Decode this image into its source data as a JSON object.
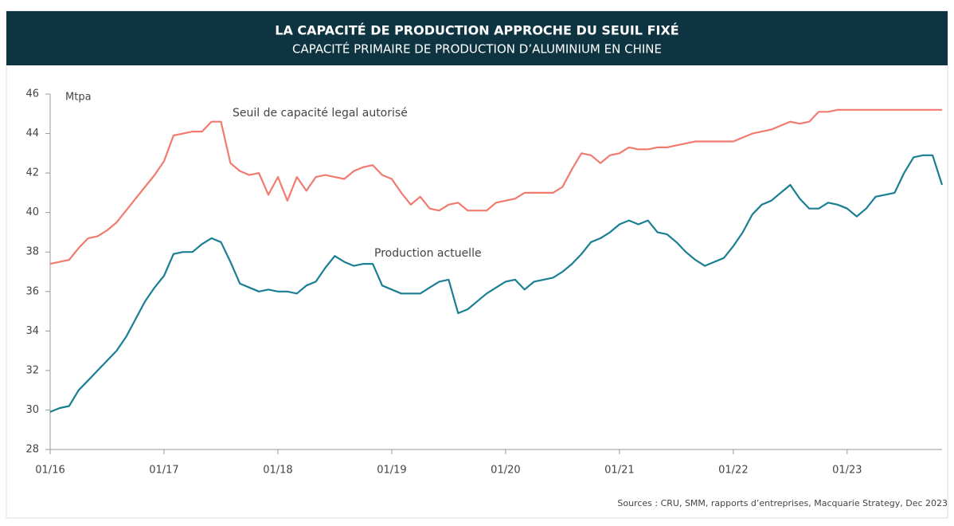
{
  "chart_data": {
    "type": "line",
    "title": "LA CAPACITÉ DE PRODUCTION APPROCHE DU SEUIL FIXÉ",
    "subtitle": "CAPACITÉ PRIMAIRE DE PRODUCTION D’ALUMINIUM EN CHINE",
    "y_unit": "Mtpa",
    "source": "Sources : CRU, SMM, rapports d’entreprises, Macquarie Strategy, Dec 2023",
    "categories": [
      "01/16",
      null,
      null,
      null,
      null,
      null,
      null,
      null,
      null,
      null,
      null,
      null,
      "01/17",
      null,
      null,
      null,
      null,
      null,
      null,
      null,
      null,
      null,
      null,
      null,
      "01/18",
      null,
      null,
      null,
      null,
      null,
      null,
      null,
      null,
      null,
      null,
      null,
      "01/19",
      null,
      null,
      null,
      null,
      null,
      null,
      null,
      null,
      null,
      null,
      null,
      "01/20",
      null,
      null,
      null,
      null,
      null,
      null,
      null,
      null,
      null,
      null,
      null,
      "01/21",
      null,
      null,
      null,
      null,
      null,
      null,
      null,
      null,
      null,
      null,
      null,
      "01/22",
      null,
      null,
      null,
      null,
      null,
      null,
      null,
      null,
      null,
      null,
      null,
      "01/23",
      null,
      null,
      null,
      null,
      null,
      null,
      null,
      null,
      null,
      null
    ],
    "series": [
      {
        "name": "Seuil de capacité legal autorisé",
        "color": "#f07b6e",
        "values": [
          37.4,
          37.5,
          37.6,
          38.2,
          38.7,
          38.8,
          39.1,
          39.5,
          40.1,
          40.7,
          41.3,
          41.9,
          42.6,
          43.9,
          44.0,
          44.1,
          44.1,
          44.6,
          44.6,
          42.5,
          42.1,
          41.9,
          42.0,
          40.9,
          41.8,
          40.6,
          41.8,
          41.1,
          41.8,
          41.9,
          41.8,
          41.7,
          42.1,
          42.3,
          42.4,
          41.9,
          41.7,
          41.0,
          40.4,
          40.8,
          40.2,
          40.1,
          40.4,
          40.5,
          40.1,
          40.1,
          40.1,
          40.5,
          40.6,
          40.7,
          41.0,
          41.0,
          41.0,
          41.0,
          41.3,
          42.2,
          43.0,
          42.9,
          42.5,
          42.9,
          43.0,
          43.3,
          43.2,
          43.2,
          43.3,
          43.3,
          43.4,
          43.5,
          43.6,
          43.6,
          43.6,
          43.6,
          43.6,
          43.8,
          44.0,
          44.1,
          44.2,
          44.4,
          44.6,
          44.5,
          44.6,
          45.1,
          45.1,
          45.2,
          45.2,
          45.2,
          45.2,
          45.2,
          45.2,
          45.2,
          45.2,
          45.2,
          45.2,
          45.2,
          45.2
        ]
      },
      {
        "name": "Production actuelle",
        "color": "#1a7f93",
        "values": [
          29.9,
          30.1,
          30.2,
          31.0,
          31.5,
          32.0,
          32.5,
          33.0,
          33.7,
          34.6,
          35.5,
          36.2,
          36.8,
          37.9,
          38.0,
          38.0,
          38.4,
          38.7,
          38.5,
          37.5,
          36.4,
          36.2,
          36.0,
          36.1,
          36.0,
          36.0,
          35.9,
          36.3,
          36.5,
          37.2,
          37.8,
          37.5,
          37.3,
          37.4,
          37.4,
          36.3,
          36.1,
          35.9,
          35.9,
          35.9,
          36.2,
          36.5,
          36.6,
          34.9,
          35.1,
          35.5,
          35.9,
          36.2,
          36.5,
          36.6,
          36.1,
          36.5,
          36.6,
          36.7,
          37.0,
          37.4,
          37.9,
          38.5,
          38.7,
          39.0,
          39.4,
          39.6,
          39.4,
          39.6,
          39.0,
          38.9,
          38.5,
          38.0,
          37.6,
          37.3,
          37.5,
          37.7,
          38.3,
          39.0,
          39.9,
          40.4,
          40.6,
          41.0,
          41.4,
          40.7,
          40.2,
          40.2,
          40.5,
          40.4,
          40.2,
          39.8,
          40.2,
          40.8,
          40.9,
          41.0,
          42.0,
          42.8,
          42.9,
          42.9,
          41.4
        ]
      }
    ],
    "ylim": [
      28,
      46
    ],
    "yticks": [
      28,
      30,
      32,
      34,
      36,
      38,
      40,
      42,
      44,
      46
    ],
    "grid": false
  }
}
